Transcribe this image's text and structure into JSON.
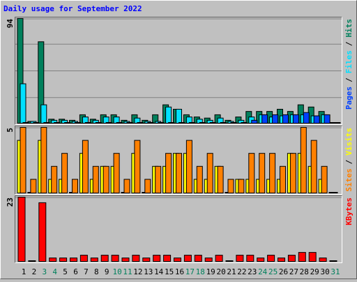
{
  "chart_data": {
    "type": "bar",
    "title": "Daily usage for September 2022",
    "categories": [
      "1",
      "2",
      "3",
      "4",
      "5",
      "6",
      "7",
      "8",
      "9",
      "10",
      "11",
      "12",
      "13",
      "14",
      "15",
      "16",
      "17",
      "18",
      "19",
      "20",
      "21",
      "22",
      "23",
      "24",
      "25",
      "26",
      "27",
      "28",
      "29",
      "30",
      "31"
    ],
    "category_colors": [
      "#000000",
      "#000000",
      "#00805c",
      "#00805c",
      "#000000",
      "#000000",
      "#000000",
      "#000000",
      "#000000",
      "#00805c",
      "#00805c",
      "#000000",
      "#000000",
      "#000000",
      "#000000",
      "#000000",
      "#00805c",
      "#00805c",
      "#000000",
      "#000000",
      "#000000",
      "#000000",
      "#000000",
      "#00805c",
      "#00805c",
      "#000000",
      "#000000",
      "#000000",
      "#000000",
      "#000000",
      "#00805c"
    ],
    "legend_separator": "/",
    "panels": [
      {
        "ylim": [
          0,
          94
        ],
        "yticks": [
          94
        ],
        "series": [
          {
            "name": "Pages",
            "color": "#0040ff",
            "values": [
              0,
              0,
              0,
              0,
              0,
              0,
              0,
              0,
              0,
              0,
              0,
              0,
              0,
              0,
              0,
              0,
              0,
              0,
              0,
              0,
              0,
              0,
              2,
              7,
              7,
              7,
              7,
              9,
              6,
              7,
              0
            ]
          },
          {
            "name": "Files",
            "color": "#00e0ff",
            "values": [
              35,
              1,
              16,
              2,
              2,
              1,
              5,
              2,
              5,
              5,
              1,
              4,
              1,
              1,
              14,
              12,
              5,
              3,
              2,
              4,
              1,
              2,
              5,
              7,
              5,
              6,
              7,
              7,
              6,
              7,
              0
            ]
          },
          {
            "name": "Hits",
            "color": "#00805c",
            "values": [
              94,
              1,
              73,
              3,
              3,
              2,
              7,
              3,
              7,
              7,
              2,
              7,
              2,
              7,
              16,
              12,
              7,
              5,
              4,
              7,
              2,
              5,
              10,
              10,
              10,
              12,
              10,
              16,
              14,
              10,
              0
            ]
          }
        ]
      },
      {
        "ylim": [
          0,
          5
        ],
        "yticks": [
          5
        ],
        "series": [
          {
            "name": "Sites",
            "color": "#ff8000",
            "values": [
              5,
              1,
              5,
              2,
              3,
              1,
              4,
              2,
              2,
              3,
              1,
              4,
              1,
              2,
              3,
              3,
              4,
              2,
              3,
              2,
              1,
              1,
              3,
              3,
              3,
              2,
              3,
              5,
              4,
              2,
              0
            ]
          },
          {
            "name": "Visits",
            "color": "#ffff00",
            "values": [
              4,
              0,
              4,
              1,
              1,
              0,
              3,
              1,
              2,
              2,
              0,
              3,
              0,
              2,
              2,
              3,
              3,
              1,
              1,
              2,
              0,
              1,
              1,
              1,
              1,
              1,
              3,
              3,
              2,
              1,
              0
            ]
          }
        ]
      },
      {
        "ylim": [
          0,
          23
        ],
        "yticks": [
          23
        ],
        "series": [
          {
            "name": "KBytes",
            "color": "#ff0000",
            "values": [
              23,
              0,
              21,
              1,
              1,
              1,
              2,
              1,
              2,
              2,
              1,
              2,
              1,
              2,
              2,
              1,
              2,
              2,
              1,
              2,
              0,
              2,
              2,
              1,
              2,
              1,
              2,
              3,
              3,
              1,
              0
            ]
          }
        ]
      }
    ]
  }
}
